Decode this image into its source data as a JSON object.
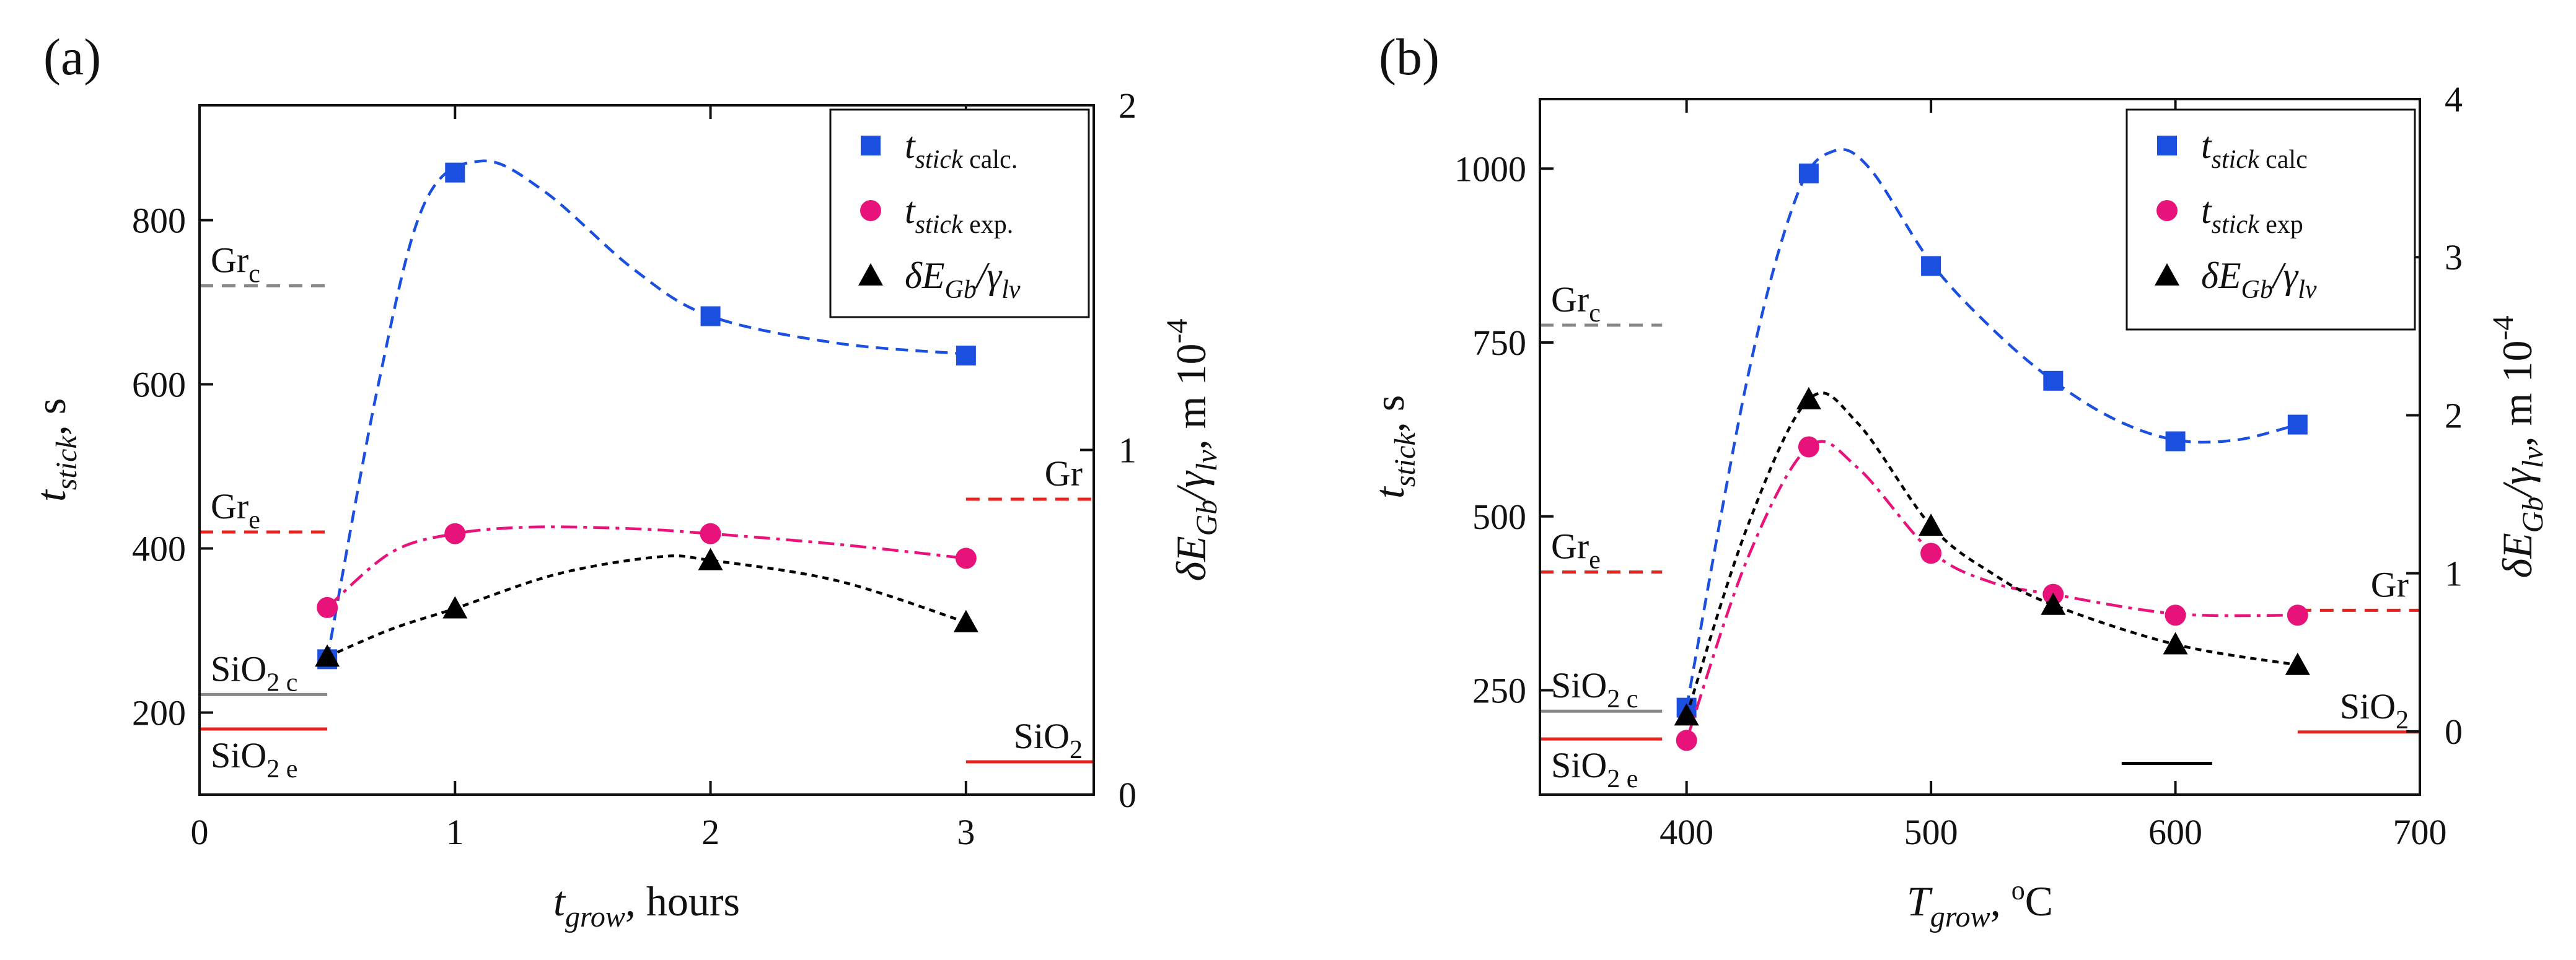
{
  "chart_data": [
    {
      "type": "scatter",
      "panel_label": "(a)",
      "xlabel": {
        "main": "t",
        "sub": "grow",
        "rest": ", hours"
      },
      "ylabel": {
        "main": "t",
        "sub": "stick",
        "rest": ", s"
      },
      "y2label": {
        "text": "δE",
        "sub1": "Gb",
        "mid": "/γ",
        "sub2": "lv",
        "rest": ", m 10",
        "sup": "-4"
      },
      "xlim": [
        0,
        3.5
      ],
      "ylim": [
        100,
        940
      ],
      "y2lim": [
        0,
        2
      ],
      "xticks": [
        0,
        1,
        2,
        3
      ],
      "yticks": [
        200,
        400,
        600,
        800
      ],
      "y2ticks": [
        0,
        1,
        2
      ],
      "series": [
        {
          "name": "t_stick calc.",
          "label_main": "t",
          "label_sub": "stick",
          "label_rest": " calc.",
          "marker": "square",
          "color": "#1a4fe0",
          "axis": "left",
          "x": [
            0.5,
            1,
            2,
            3
          ],
          "y": [
            265,
            858,
            683,
            635
          ],
          "curve": [
            [
              0.5,
              265
            ],
            [
              0.7,
              600
            ],
            [
              0.88,
              820
            ],
            [
              1.1,
              872
            ],
            [
              1.35,
              835
            ],
            [
              1.7,
              740
            ],
            [
              2,
              683
            ],
            [
              2.5,
              650
            ],
            [
              3,
              637
            ]
          ]
        },
        {
          "name": "t_stick exp.",
          "label_main": "t",
          "label_sub": "stick",
          "label_rest": " exp.",
          "marker": "circle",
          "color": "#e8137a",
          "axis": "left",
          "x": [
            0.5,
            1,
            2,
            3
          ],
          "y": [
            328,
            418,
            418,
            388
          ],
          "curve": [
            [
              0.5,
              328
            ],
            [
              0.75,
              395
            ],
            [
              1,
              418
            ],
            [
              1.3,
              426
            ],
            [
              1.7,
              424
            ],
            [
              2,
              418
            ],
            [
              2.5,
              405
            ],
            [
              3,
              388
            ]
          ]
        },
        {
          "name": "δE_Gb/γ_lv",
          "label_main": "δE",
          "label_sub": "Gb",
          "label_rest": "/γ",
          "label_sub2": "lv",
          "marker": "triangle",
          "color": "#000000",
          "axis": "right",
          "x": [
            0.5,
            1,
            2,
            3
          ],
          "y": [
            0.4,
            0.54,
            0.68,
            0.5
          ],
          "curve": [
            [
              0.5,
              0.4
            ],
            [
              0.75,
              0.48
            ],
            [
              1,
              0.54
            ],
            [
              1.4,
              0.64
            ],
            [
              1.8,
              0.69
            ],
            [
              2,
              0.68
            ],
            [
              2.5,
              0.62
            ],
            [
              3,
              0.5
            ]
          ]
        }
      ],
      "reference_lines": [
        {
          "label": "Gr",
          "sub": "c",
          "y": 720,
          "x_range": [
            0,
            0.5
          ],
          "color": "#888888",
          "style": "dashed",
          "label_pos": "above-left"
        },
        {
          "label": "Gr",
          "sub": "e",
          "y": 420,
          "x_range": [
            0,
            0.5
          ],
          "color": "#e8221c",
          "style": "dashed",
          "label_pos": "above-left"
        },
        {
          "label": "SiO",
          "sub": "2 c",
          "y": 222,
          "x_range": [
            0,
            0.5
          ],
          "color": "#888888",
          "style": "solid",
          "label_pos": "above-left"
        },
        {
          "label": "SiO",
          "sub": "2 e",
          "y": 180,
          "x_range": [
            0,
            0.5
          ],
          "color": "#e8221c",
          "style": "solid",
          "label_pos": "below-left"
        },
        {
          "label": "Gr",
          "sub": "",
          "y": 460,
          "x_range": [
            3.0,
            3.5
          ],
          "color": "#e8221c",
          "style": "dashed",
          "label_pos": "above-right"
        },
        {
          "label": "SiO",
          "sub": "2",
          "y": 140,
          "x_range": [
            3.0,
            3.5
          ],
          "color": "#e8221c",
          "style": "solid",
          "label_pos": "above-right"
        }
      ],
      "legend": "top-right"
    },
    {
      "type": "scatter",
      "panel_label": "(b)",
      "xlabel": {
        "main": "T",
        "sub": "grow",
        "rest": ", ",
        "sup": "o",
        "unit": "C"
      },
      "ylabel": {
        "main": "t",
        "sub": "stick",
        "rest": ", s"
      },
      "y2label": {
        "text": "δE",
        "sub1": "Gb",
        "mid": "/γ",
        "sub2": "lv",
        "rest": ", m 10",
        "sup": "-4"
      },
      "xlim": [
        340,
        700
      ],
      "ylim": [
        100,
        1100
      ],
      "y2lim": [
        -0.4,
        4
      ],
      "xticks": [
        400,
        500,
        600,
        700
      ],
      "yticks": [
        250,
        500,
        750,
        1000
      ],
      "y2ticks": [
        0,
        1,
        2,
        3,
        4
      ],
      "series": [
        {
          "name": "t_stick calc",
          "label_main": "t",
          "label_sub": "stick",
          "label_rest": " calc",
          "marker": "square",
          "color": "#1a4fe0",
          "axis": "left",
          "x": [
            400,
            450,
            500,
            550,
            600,
            650
          ],
          "y": [
            225,
            993,
            860,
            695,
            608,
            632
          ],
          "curve": [
            [
              400,
              225
            ],
            [
              425,
              700
            ],
            [
              445,
              960
            ],
            [
              460,
              1025
            ],
            [
              475,
              1000
            ],
            [
              500,
              865
            ],
            [
              525,
              770
            ],
            [
              550,
              695
            ],
            [
              575,
              640
            ],
            [
              600,
              610
            ],
            [
              625,
              610
            ],
            [
              650,
              632
            ]
          ]
        },
        {
          "name": "t_stick exp",
          "label_main": "t",
          "label_sub": "stick",
          "label_rest": " exp",
          "marker": "circle",
          "color": "#e8137a",
          "axis": "left",
          "x": [
            400,
            450,
            500,
            550,
            600,
            650
          ],
          "y": [
            178,
            600,
            447,
            388,
            358,
            358
          ],
          "curve": [
            [
              400,
              178
            ],
            [
              425,
              440
            ],
            [
              450,
              600
            ],
            [
              470,
              570
            ],
            [
              500,
              450
            ],
            [
              525,
              405
            ],
            [
              550,
              388
            ],
            [
              600,
              360
            ],
            [
              650,
              358
            ]
          ]
        },
        {
          "name": "δE_Gb/γ_lv",
          "label_main": "δE",
          "label_sub": "Gb",
          "label_rest": "/γ",
          "label_sub2": "lv",
          "marker": "triangle",
          "color": "#000000",
          "axis": "right",
          "x": [
            400,
            450,
            500,
            550,
            600,
            650
          ],
          "y": [
            0.1,
            2.1,
            1.3,
            0.8,
            0.55,
            0.42
          ],
          "curve": [
            [
              400,
              0.1
            ],
            [
              425,
              1.3
            ],
            [
              450,
              2.1
            ],
            [
              470,
              1.95
            ],
            [
              500,
              1.3
            ],
            [
              525,
              1.0
            ],
            [
              550,
              0.8
            ],
            [
              600,
              0.55
            ],
            [
              650,
              0.42
            ]
          ]
        }
      ],
      "reference_lines": [
        {
          "label": "Gr",
          "sub": "c",
          "y": 775,
          "x_range": [
            340,
            390
          ],
          "color": "#888888",
          "style": "dashed",
          "label_pos": "above-left"
        },
        {
          "label": "Gr",
          "sub": "e",
          "y": 420,
          "x_range": [
            340,
            390
          ],
          "color": "#e8221c",
          "style": "dashed",
          "label_pos": "above-left"
        },
        {
          "label": "SiO",
          "sub": "2 c",
          "y": 220,
          "x_range": [
            340,
            390
          ],
          "color": "#888888",
          "style": "solid",
          "label_pos": "above-left"
        },
        {
          "label": "SiO",
          "sub": "2 e",
          "y": 180,
          "x_range": [
            340,
            390
          ],
          "color": "#e8221c",
          "style": "solid",
          "label_pos": "below-left"
        },
        {
          "label": "Gr",
          "sub": "",
          "y": 365,
          "x_range": [
            650,
            700
          ],
          "color": "#e8221c",
          "style": "dashed",
          "label_pos": "above-right"
        },
        {
          "label": "SiO",
          "sub": "2",
          "y": 190,
          "x_range": [
            650,
            700
          ],
          "color": "#e8221c",
          "style": "solid",
          "label_pos": "above-right"
        },
        {
          "label": "",
          "sub": "",
          "y": 145,
          "x_range": [
            578,
            615
          ],
          "color": "#000000",
          "style": "solid",
          "label_pos": "none"
        }
      ],
      "legend": "top-right"
    }
  ]
}
